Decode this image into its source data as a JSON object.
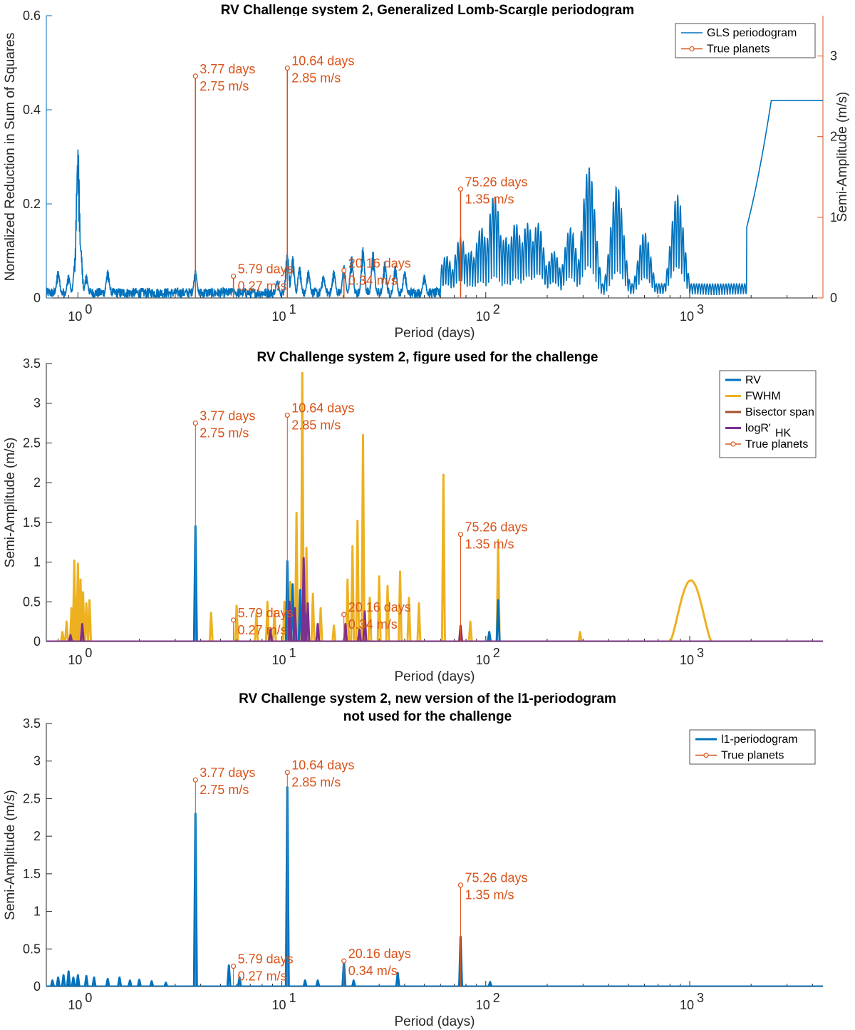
{
  "colors": {
    "blue": "#0072BD",
    "orange": "#D95319",
    "yellow": "#EDB120",
    "purple": "#7E2F8E",
    "brown": "#A0522D",
    "axis": "#262626"
  },
  "chart_data": [
    {
      "type": "line",
      "title": "RV Challenge system 2, Generalized Lomb-Scargle periodogram",
      "title2": "",
      "xlabel": "Period (days)",
      "ylabel": "Normalized Reduction in Sum of Squares",
      "ylabel_right": "Semi-Amplitude (m/s)",
      "xscale": "log",
      "xlim": [
        0.7,
        4500
      ],
      "ylim": [
        0,
        0.6
      ],
      "yticks": [
        0,
        0.2,
        0.4,
        0.6
      ],
      "ytick_labels": [
        "0",
        "0.2",
        "0.4",
        "0.6"
      ],
      "ylim_right": [
        0,
        3.5
      ],
      "yticks_right": [
        0,
        1,
        2,
        3
      ],
      "ytick_labels_right": [
        "0",
        "1",
        "2",
        "3"
      ],
      "xticks": [
        1,
        10,
        100,
        1000
      ],
      "xtick_labels": [
        "10",
        "10",
        "10",
        "10"
      ],
      "xtick_exponents": [
        "0",
        "1",
        "2",
        "3"
      ],
      "legend_position": "top-right",
      "legend": [
        "GLS periodogram",
        "True planets"
      ],
      "series": [
        {
          "name": "GLS periodogram",
          "color": "#0072BD",
          "width": 1.6,
          "peaks": [
            [
              0.8,
              0.06
            ],
            [
              0.9,
              0.05
            ],
            [
              0.97,
              0.09
            ],
            [
              1.0,
              0.33
            ],
            [
              1.03,
              0.12
            ],
            [
              1.1,
              0.05
            ],
            [
              1.4,
              0.06
            ],
            [
              3.77,
              0.06
            ],
            [
              5.79,
              0.02
            ],
            [
              9.5,
              0.04
            ],
            [
              10.64,
              0.1
            ],
            [
              11.3,
              0.09
            ],
            [
              12.2,
              0.07
            ],
            [
              13.5,
              0.06
            ],
            [
              16,
              0.05
            ],
            [
              18,
              0.06
            ],
            [
              20.16,
              0.07
            ],
            [
              22,
              0.09
            ],
            [
              25,
              0.11
            ],
            [
              28,
              0.1
            ],
            [
              32,
              0.08
            ],
            [
              36,
              0.07
            ],
            [
              40,
              0.06
            ],
            [
              50,
              0.05
            ],
            [
              64,
              0.09
            ],
            [
              75.26,
              0.13
            ],
            [
              84,
              0.1
            ],
            [
              95,
              0.15
            ],
            [
              110,
              0.22
            ],
            [
              125,
              0.13
            ],
            [
              140,
              0.16
            ],
            [
              160,
              0.16
            ],
            [
              180,
              0.16
            ],
            [
              215,
              0.1
            ],
            [
              260,
              0.15
            ],
            [
              320,
              0.28
            ],
            [
              440,
              0.24
            ],
            [
              600,
              0.14
            ],
            [
              870,
              0.22
            ],
            [
              2600,
              0.42
            ]
          ]
        }
      ],
      "planets": [
        {
          "period": 3.77,
          "amplitude": 2.75,
          "label_days": "3.77 days",
          "label_amp": "2.75 m/s"
        },
        {
          "period": 5.79,
          "amplitude": 0.27,
          "label_days": "5.79 days",
          "label_amp": "0.27 m/s"
        },
        {
          "period": 10.64,
          "amplitude": 2.85,
          "label_days": "10.64 days",
          "label_amp": "2.85 m/s"
        },
        {
          "period": 20.16,
          "amplitude": 0.34,
          "label_days": "20.16 days",
          "label_amp": "0.34 m/s"
        },
        {
          "period": 75.26,
          "amplitude": 1.35,
          "label_days": "75.26 days",
          "label_amp": "1.35 m/s"
        }
      ]
    },
    {
      "type": "bar",
      "title": "RV Challenge system 2, figure used for the challenge",
      "title2": "",
      "xlabel": "Period (days)",
      "ylabel": "Semi-Amplitude (m/s)",
      "xscale": "log",
      "xlim": [
        0.7,
        4500
      ],
      "ylim": [
        0,
        3.5
      ],
      "yticks": [
        0,
        0.5,
        1,
        1.5,
        2,
        2.5,
        3,
        3.5
      ],
      "ytick_labels": [
        "0",
        "0.5",
        "1",
        "1.5",
        "2",
        "2.5",
        "3",
        "3.5"
      ],
      "xticks": [
        1,
        10,
        100,
        1000
      ],
      "xtick_labels": [
        "10",
        "10",
        "10",
        "10"
      ],
      "xtick_exponents": [
        "0",
        "1",
        "2",
        "3"
      ],
      "legend_position": "top-right",
      "legend": [
        "RV",
        "FWHM",
        "Bisector span",
        "logR'",
        "True planets"
      ],
      "legend_sub": "HK",
      "series": [
        {
          "name": "FWHM",
          "color": "#EDB120",
          "width": 3,
          "peaks": [
            [
              0.84,
              0.12
            ],
            [
              0.88,
              0.25
            ],
            [
              0.93,
              0.42
            ],
            [
              0.96,
              1.02
            ],
            [
              0.98,
              0.55
            ],
            [
              1.0,
              0.98
            ],
            [
              1.03,
              0.78
            ],
            [
              1.06,
              0.62
            ],
            [
              1.1,
              0.48
            ],
            [
              1.14,
              0.52
            ],
            [
              4.5,
              0.36
            ],
            [
              6.0,
              0.45
            ],
            [
              7.5,
              0.35
            ],
            [
              8.5,
              0.5
            ],
            [
              9.2,
              0.38
            ],
            [
              10.3,
              0.5
            ],
            [
              11.0,
              0.75
            ],
            [
              11.8,
              1.62
            ],
            [
              12.6,
              3.38
            ],
            [
              13.2,
              1.18
            ],
            [
              14.2,
              0.6
            ],
            [
              15.5,
              0.42
            ],
            [
              18.0,
              0.2
            ],
            [
              21.0,
              0.78
            ],
            [
              22.2,
              1.2
            ],
            [
              23.5,
              1.52
            ],
            [
              25.0,
              2.6
            ],
            [
              27.0,
              0.55
            ],
            [
              30.0,
              0.82
            ],
            [
              33.0,
              0.7
            ],
            [
              38.0,
              0.88
            ],
            [
              42.0,
              0.55
            ],
            [
              47.0,
              0.48
            ],
            [
              62.0,
              2.1
            ],
            [
              84.0,
              0.25
            ],
            [
              115.0,
              1.28
            ],
            [
              290.0,
              0.12
            ]
          ]
        },
        {
          "name": "FWHM",
          "color": "#EDB120",
          "width": 3,
          "hump": [
            800,
            1280,
            1020,
            0.77
          ]
        },
        {
          "name": "RV",
          "color": "#0072BD",
          "width": 3,
          "peaks": [
            [
              3.77,
              1.45
            ],
            [
              10.64,
              1.01
            ],
            [
              11.3,
              0.72
            ],
            [
              12.3,
              0.65
            ],
            [
              13.0,
              0.35
            ],
            [
              104,
              0.12
            ],
            [
              115,
              0.52
            ]
          ]
        },
        {
          "name": "logR'",
          "color": "#7E2F8E",
          "width": 3,
          "peaks": [
            [
              0.92,
              0.08
            ],
            [
              1.05,
              0.22
            ],
            [
              8.8,
              0.15
            ],
            [
              10.9,
              0.5
            ],
            [
              11.6,
              0.42
            ],
            [
              12.8,
              1.05
            ],
            [
              13.4,
              0.48
            ],
            [
              15.0,
              0.22
            ],
            [
              20.5,
              0.22
            ],
            [
              24.0,
              0.15
            ],
            [
              25.5,
              0.38
            ],
            [
              75.26,
              0.2
            ]
          ]
        }
      ],
      "planets": [
        {
          "period": 3.77,
          "amplitude": 2.75,
          "label_days": "3.77 days",
          "label_amp": "2.75 m/s"
        },
        {
          "period": 5.79,
          "amplitude": 0.27,
          "label_days": "5.79 days",
          "label_amp": "0.27 m/s"
        },
        {
          "period": 10.64,
          "amplitude": 2.85,
          "label_days": "10.64 days",
          "label_amp": "2.85 m/s"
        },
        {
          "period": 20.16,
          "amplitude": 0.34,
          "label_days": "20.16 days",
          "label_amp": "0.34 m/s"
        },
        {
          "period": 75.26,
          "amplitude": 1.35,
          "label_days": "75.26 days",
          "label_amp": "1.35 m/s"
        }
      ]
    },
    {
      "type": "bar",
      "title": "RV Challenge system 2, new version of the l1-periodogram",
      "title2": "not used for the challenge",
      "xlabel": "Period (days)",
      "ylabel": "Semi-Amplitude (m/s)",
      "xscale": "log",
      "xlim": [
        0.7,
        4500
      ],
      "ylim": [
        0,
        3.5
      ],
      "yticks": [
        0,
        0.5,
        1,
        1.5,
        2,
        2.5,
        3,
        3.5
      ],
      "ytick_labels": [
        "0",
        "0.5",
        "1",
        "1.5",
        "2",
        "2.5",
        "3",
        "3.5"
      ],
      "xticks": [
        1,
        10,
        100,
        1000
      ],
      "xtick_labels": [
        "10",
        "10",
        "10",
        "10"
      ],
      "xtick_exponents": [
        "0",
        "1",
        "2",
        "3"
      ],
      "legend_position": "top-right",
      "legend": [
        "l1-periodogram",
        "True planets"
      ],
      "series": [
        {
          "name": "l1-periodogram",
          "color": "#0072BD",
          "width": 3,
          "peaks": [
            [
              0.75,
              0.08
            ],
            [
              0.8,
              0.12
            ],
            [
              0.85,
              0.15
            ],
            [
              0.9,
              0.2
            ],
            [
              0.95,
              0.12
            ],
            [
              1.0,
              0.15
            ],
            [
              1.1,
              0.14
            ],
            [
              1.2,
              0.12
            ],
            [
              1.4,
              0.1
            ],
            [
              1.6,
              0.12
            ],
            [
              1.8,
              0.08
            ],
            [
              2.0,
              0.09
            ],
            [
              2.3,
              0.07
            ],
            [
              2.7,
              0.05
            ],
            [
              3.77,
              2.3
            ],
            [
              5.5,
              0.28
            ],
            [
              6.2,
              0.12
            ],
            [
              10.64,
              2.65
            ],
            [
              13.0,
              0.08
            ],
            [
              15.0,
              0.08
            ],
            [
              20.16,
              0.34
            ],
            [
              22.5,
              0.08
            ],
            [
              37.0,
              0.18
            ],
            [
              75.26,
              0.66
            ],
            [
              105,
              0.06
            ]
          ]
        }
      ],
      "planets": [
        {
          "period": 3.77,
          "amplitude": 2.75,
          "label_days": "3.77 days",
          "label_amp": "2.75 m/s"
        },
        {
          "period": 5.79,
          "amplitude": 0.27,
          "label_days": "5.79 days",
          "label_amp": "0.27 m/s"
        },
        {
          "period": 10.64,
          "amplitude": 2.85,
          "label_days": "10.64 days",
          "label_amp": "2.85 m/s"
        },
        {
          "period": 20.16,
          "amplitude": 0.34,
          "label_days": "20.16 days",
          "label_amp": "0.34 m/s"
        },
        {
          "period": 75.26,
          "amplitude": 1.35,
          "label_days": "75.26 days",
          "label_amp": "1.35 m/s"
        }
      ]
    }
  ]
}
